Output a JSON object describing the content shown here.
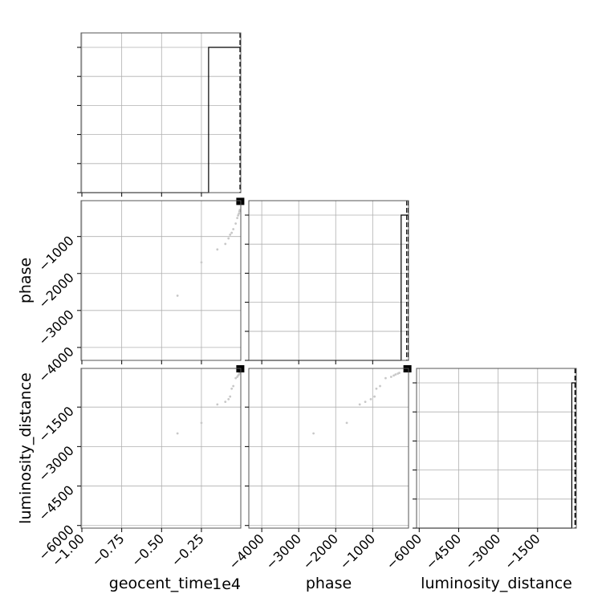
{
  "chart_data": {
    "type": "scatter",
    "kind": "corner_plot",
    "parameters": [
      "geocent_time",
      "phase",
      "luminosity_distance"
    ],
    "axis_labels": {
      "geocent_time": "geocent_time",
      "phase": "phase",
      "luminosity_distance": "luminosity_distance"
    },
    "offset_text": {
      "geocent_time": "1e4"
    },
    "ranges": {
      "geocent_time": [
        -10050,
        -30
      ],
      "phase": [
        -4350,
        -30
      ],
      "luminosity_distance": [
        -6100,
        -30
      ]
    },
    "ticks": {
      "geocent_time": {
        "values": [
          -10000,
          -7500,
          -5000,
          -2500
        ],
        "labels": [
          "−1.00",
          "−0.75",
          "−0.50",
          "−0.25"
        ]
      },
      "phase": {
        "values": [
          -4000,
          -3000,
          -2000,
          -1000
        ],
        "labels": [
          "−4000",
          "−3000",
          "−2000",
          "−1000"
        ]
      },
      "luminosity_distance": {
        "values": [
          -6000,
          -4500,
          -3000,
          -1500
        ],
        "labels": [
          "−6000",
          "−4500",
          "−3000",
          "−1500"
        ]
      }
    },
    "histograms": {
      "geocent_time": {
        "bulk_from": -2050,
        "bulk_to": -30,
        "quantiles": [
          -80,
          -40
        ]
      },
      "phase": {
        "bulk_from": -230,
        "bulk_to": -30,
        "quantiles": [
          -80,
          -40
        ]
      },
      "luminosity_distance": {
        "bulk_from": -200,
        "bulk_to": -30,
        "quantiles": [
          -80,
          -40
        ]
      }
    },
    "samples": [
      {
        "geocent_time": -4000,
        "phase": -2600,
        "luminosity_distance": -2500
      },
      {
        "geocent_time": -2500,
        "phase": -1700,
        "luminosity_distance": -2100
      },
      {
        "geocent_time": -1000,
        "phase": -1200,
        "luminosity_distance": -1300
      },
      {
        "geocent_time": -700,
        "phase": -950,
        "luminosity_distance": -1100
      },
      {
        "geocent_time": -600,
        "phase": -900,
        "luminosity_distance": -800
      },
      {
        "geocent_time": -500,
        "phase": -800,
        "luminosity_distance": -700
      },
      {
        "geocent_time": -350,
        "phase": -650,
        "luminosity_distance": -400
      },
      {
        "geocent_time": -250,
        "phase": -500,
        "luminosity_distance": -350
      },
      {
        "geocent_time": -200,
        "phase": -430,
        "luminosity_distance": -300
      },
      {
        "geocent_time": -150,
        "phase": -380,
        "luminosity_distance": -260
      },
      {
        "geocent_time": -120,
        "phase": -320,
        "luminosity_distance": -230
      },
      {
        "geocent_time": -90,
        "phase": -280,
        "luminosity_distance": -200
      },
      {
        "geocent_time": -1500,
        "phase": -1350,
        "luminosity_distance": -1400
      },
      {
        "geocent_time": -800,
        "phase": -1050,
        "luminosity_distance": -1200
      }
    ],
    "grid": true
  }
}
